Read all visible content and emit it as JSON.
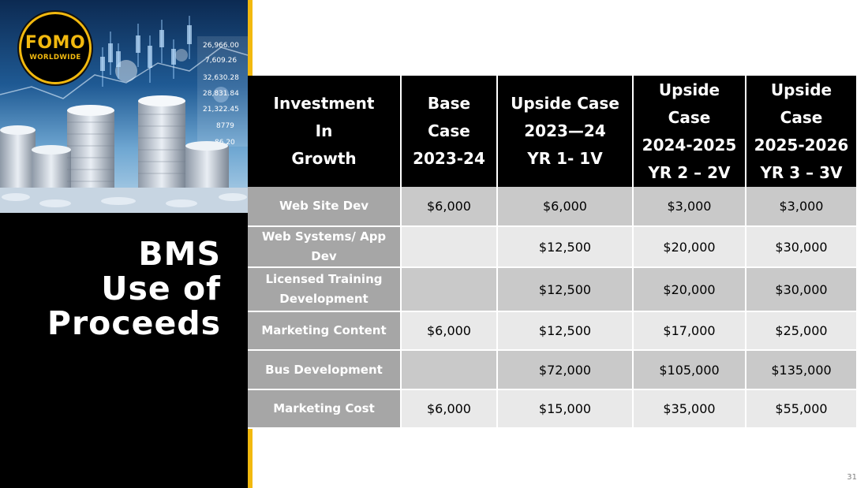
{
  "logo": {
    "main": "FOMO",
    "sub": "WORLDWIDE"
  },
  "hero": {
    "ticker_values": [
      "26,966.00",
      "7,609.26",
      "32,630.28",
      "28,831.84",
      "21,322.45",
      "8779",
      "86.20"
    ]
  },
  "title": {
    "line1": "BMS",
    "line2": "Use of",
    "line3": "Proceeds"
  },
  "table": {
    "headers": [
      [
        "Investment",
        "In",
        "Growth"
      ],
      [
        "Base",
        "Case",
        "2023-24"
      ],
      [
        "Upside Case",
        "2023—24",
        "YR 1- 1V"
      ],
      [
        "Upside",
        "Case",
        "2024-2025",
        "YR 2 – 2V"
      ],
      [
        "Upside",
        "Case",
        "2025-2026",
        "YR 3 – 3V"
      ]
    ],
    "rows": [
      {
        "label": [
          "Web Site Dev"
        ],
        "values": [
          "$6,000",
          "$6,000",
          "$3,000",
          "$3,000"
        ]
      },
      {
        "label": [
          "Web Systems/ App",
          "Dev"
        ],
        "values": [
          "",
          "$12,500",
          "$20,000",
          "$30,000"
        ]
      },
      {
        "label": [
          "Licensed Training",
          "Development"
        ],
        "values": [
          "",
          "$12,500",
          "$20,000",
          "$30,000"
        ]
      },
      {
        "label": [
          "Marketing Content"
        ],
        "values": [
          "$6,000",
          "$12,500",
          "$17,000",
          "$25,000"
        ]
      },
      {
        "label": [
          "Bus Development"
        ],
        "values": [
          "",
          "$72,000",
          "$105,000",
          "$135,000"
        ]
      },
      {
        "label": [
          "Marketing Cost"
        ],
        "values": [
          "$6,000",
          "$15,000",
          "$35,000",
          "$55,000"
        ]
      }
    ]
  },
  "page_number": "31",
  "colors": {
    "accent": "#f2b90f",
    "header_bg": "#000000",
    "label_bg": "#a6a6a6",
    "row_dark": "#c9c9c9",
    "row_light": "#e9e9e9"
  }
}
